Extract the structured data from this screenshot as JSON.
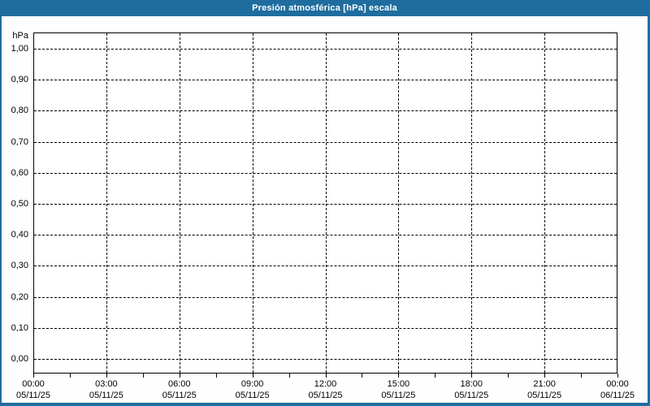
{
  "window": {
    "title": "Presión atmosférica [hPa] escala"
  },
  "colors": {
    "titlebar_bg": "#1E6D9E",
    "frame_border": "#1E6D9E",
    "title_text": "#FFFFFF",
    "axis_line": "#000000",
    "gridline": "#000000",
    "label_text": "#000000",
    "plot_bg": "#FFFFFF",
    "page_bg": "#FDFEFD"
  },
  "chart_data": {
    "type": "line",
    "title": "Presión atmosférica [hPa] escala",
    "ylabel": "hPa",
    "xlabel": "",
    "ylim": [
      0.0,
      1.0
    ],
    "xlim_hours": [
      0,
      24
    ],
    "grid": "dashed",
    "legend": "none",
    "series": [],
    "y_ticks": [
      {
        "value": 1.0,
        "label": "1,00"
      },
      {
        "value": 0.9,
        "label": "0,90"
      },
      {
        "value": 0.8,
        "label": "0,80"
      },
      {
        "value": 0.7,
        "label": "0,70"
      },
      {
        "value": 0.6,
        "label": "0,60"
      },
      {
        "value": 0.5,
        "label": "0,50"
      },
      {
        "value": 0.4,
        "label": "0,40"
      },
      {
        "value": 0.3,
        "label": "0,30"
      },
      {
        "value": 0.2,
        "label": "0,20"
      },
      {
        "value": 0.1,
        "label": "0,10"
      },
      {
        "value": 0.0,
        "label": "0,00"
      }
    ],
    "x_ticks": [
      {
        "hour": 0,
        "time": "00:00",
        "date": "05/11/25"
      },
      {
        "hour": 3,
        "time": "03:00",
        "date": "05/11/25"
      },
      {
        "hour": 6,
        "time": "06:00",
        "date": "05/11/25"
      },
      {
        "hour": 9,
        "time": "09:00",
        "date": "05/11/25"
      },
      {
        "hour": 12,
        "time": "12:00",
        "date": "05/11/25"
      },
      {
        "hour": 15,
        "time": "15:00",
        "date": "05/11/25"
      },
      {
        "hour": 18,
        "time": "18:00",
        "date": "05/11/25"
      },
      {
        "hour": 21,
        "time": "21:00",
        "date": "05/11/25"
      },
      {
        "hour": 24,
        "time": "00:00",
        "date": "06/11/25"
      }
    ],
    "minor_tick_step_hours": 1.5
  }
}
